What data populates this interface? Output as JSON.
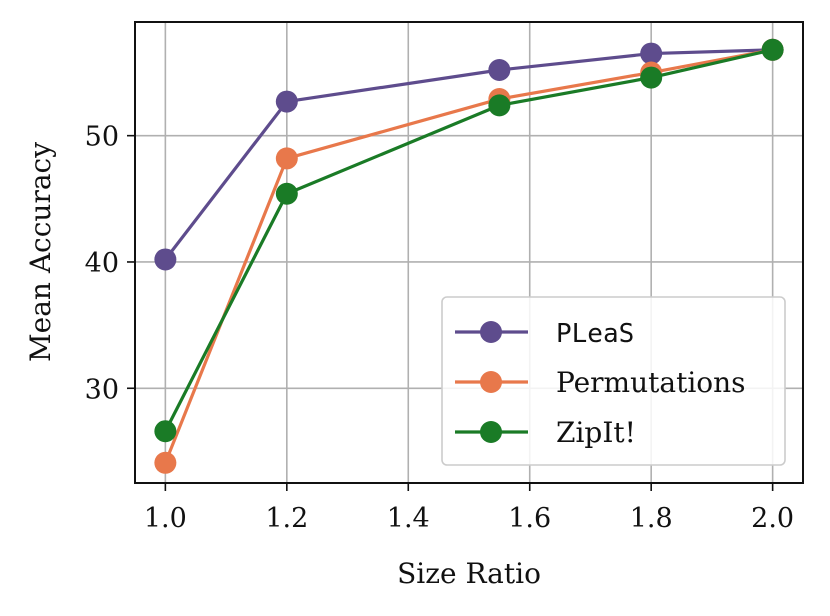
{
  "chart_data": {
    "type": "line",
    "title": "",
    "xlabel": "Size Ratio",
    "ylabel": "Mean Accuracy",
    "xlim": [
      0.95,
      2.05
    ],
    "ylim": [
      22.5,
      59.0
    ],
    "xticks": [
      1.0,
      1.2,
      1.4,
      1.6,
      1.8,
      2.0
    ],
    "xtick_labels": [
      "1.0",
      "1.2",
      "1.4",
      "1.6",
      "1.8",
      "2.0"
    ],
    "yticks": [
      30,
      40,
      50
    ],
    "ytick_labels": [
      "30",
      "40",
      "50"
    ],
    "grid": true,
    "legend_position": "bottom-right",
    "series": [
      {
        "name": "PLeaS",
        "monospace": true,
        "color": "#5e4c8d",
        "x": [
          1.0,
          1.2,
          1.55,
          1.8,
          2.0
        ],
        "y": [
          40.2,
          52.7,
          55.2,
          56.5,
          56.8
        ]
      },
      {
        "name": "Permutations",
        "monospace": false,
        "color": "#e8784b",
        "x": [
          1.0,
          1.2,
          1.55,
          1.8,
          2.0
        ],
        "y": [
          24.1,
          48.2,
          52.9,
          55.0,
          56.8
        ]
      },
      {
        "name": "ZipIt!",
        "monospace": false,
        "color": "#1a7b26",
        "x": [
          1.0,
          1.2,
          1.55,
          1.8,
          2.0
        ],
        "y": [
          26.6,
          45.4,
          52.4,
          54.6,
          56.8
        ]
      }
    ]
  }
}
